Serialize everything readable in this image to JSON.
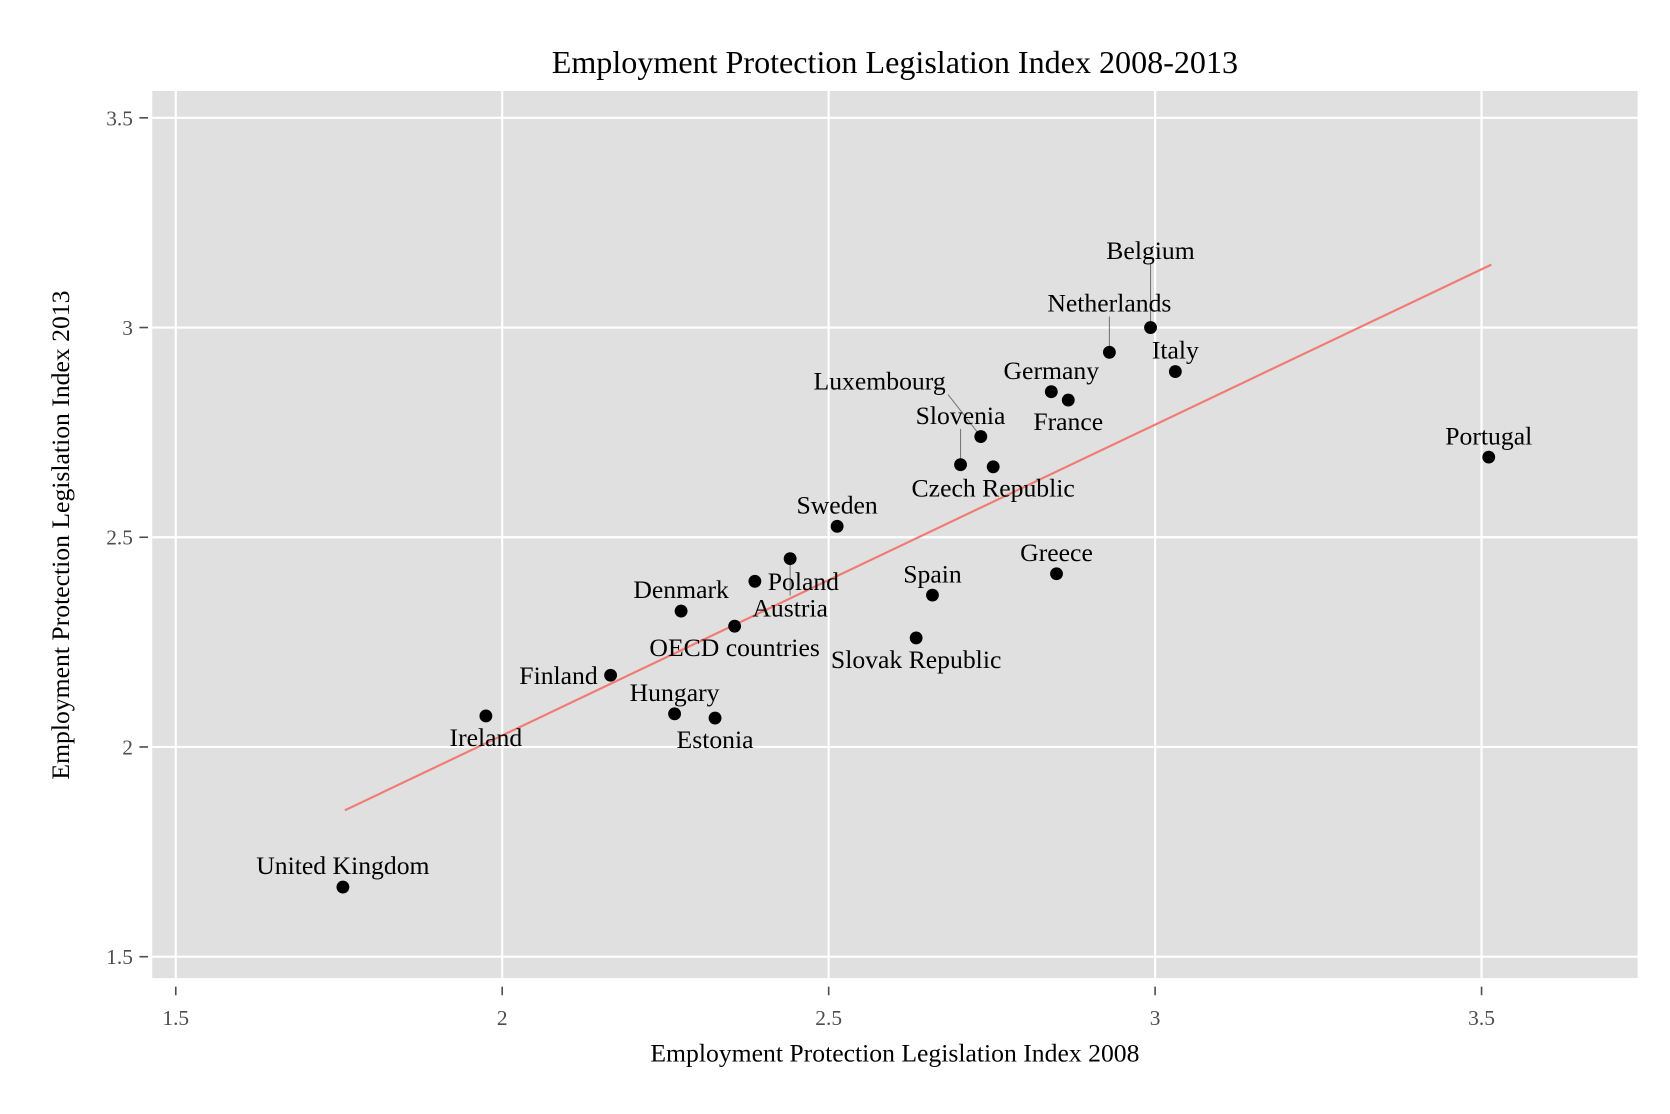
{
  "chart_data": {
    "type": "scatter",
    "title": "Employment Protection Legislation Index 2008-2013",
    "xlabel": "Employment Protection Legislation Index 2008",
    "ylabel": "Employment Protection Legislation Index 2013",
    "xlim": [
      1.464,
      3.739
    ],
    "ylim": [
      1.449,
      3.564
    ],
    "xticks": [
      "1.5",
      "2",
      "2.5",
      "3",
      "3.5"
    ],
    "yticks": [
      "1.5",
      "2",
      "2.5",
      "3",
      "3.5"
    ],
    "grid": true,
    "background": "#e0e0e0",
    "point_color": "#000000",
    "fit_line_color": "#f07b72",
    "points": [
      {
        "label": "United Kingdom",
        "x": 1.756,
        "y": 1.666
      },
      {
        "label": "Ireland",
        "x": 1.975,
        "y": 2.074
      },
      {
        "label": "Finland",
        "x": 2.166,
        "y": 2.171
      },
      {
        "label": "Hungary",
        "x": 2.264,
        "y": 2.079
      },
      {
        "label": "Estonia",
        "x": 2.326,
        "y": 2.069
      },
      {
        "label": "Denmark",
        "x": 2.274,
        "y": 2.324
      },
      {
        "label": "OECD countries",
        "x": 2.356,
        "y": 2.288
      },
      {
        "label": "Poland",
        "x": 2.387,
        "y": 2.395
      },
      {
        "label": "Austria",
        "x": 2.441,
        "y": 2.449
      },
      {
        "label": "Sweden",
        "x": 2.513,
        "y": 2.526
      },
      {
        "label": "Slovak Republic",
        "x": 2.634,
        "y": 2.26
      },
      {
        "label": "Spain",
        "x": 2.659,
        "y": 2.362
      },
      {
        "label": "Greece",
        "x": 2.849,
        "y": 2.413
      },
      {
        "label": "Slovenia",
        "x": 2.702,
        "y": 2.673
      },
      {
        "label": "Czech Republic",
        "x": 2.752,
        "y": 2.668
      },
      {
        "label": "Luxembourg",
        "x": 2.733,
        "y": 2.74
      },
      {
        "label": "Germany",
        "x": 2.841,
        "y": 2.847
      },
      {
        "label": "France",
        "x": 2.867,
        "y": 2.827
      },
      {
        "label": "Netherlands",
        "x": 2.93,
        "y": 2.941
      },
      {
        "label": "Belgium",
        "x": 2.993,
        "y": 3.0
      },
      {
        "label": "Italy",
        "x": 3.031,
        "y": 2.895
      },
      {
        "label": "Portugal",
        "x": 3.511,
        "y": 2.691
      }
    ],
    "fit_line": {
      "x": [
        1.759,
        3.515
      ],
      "y": [
        1.849,
        3.15
      ]
    }
  }
}
